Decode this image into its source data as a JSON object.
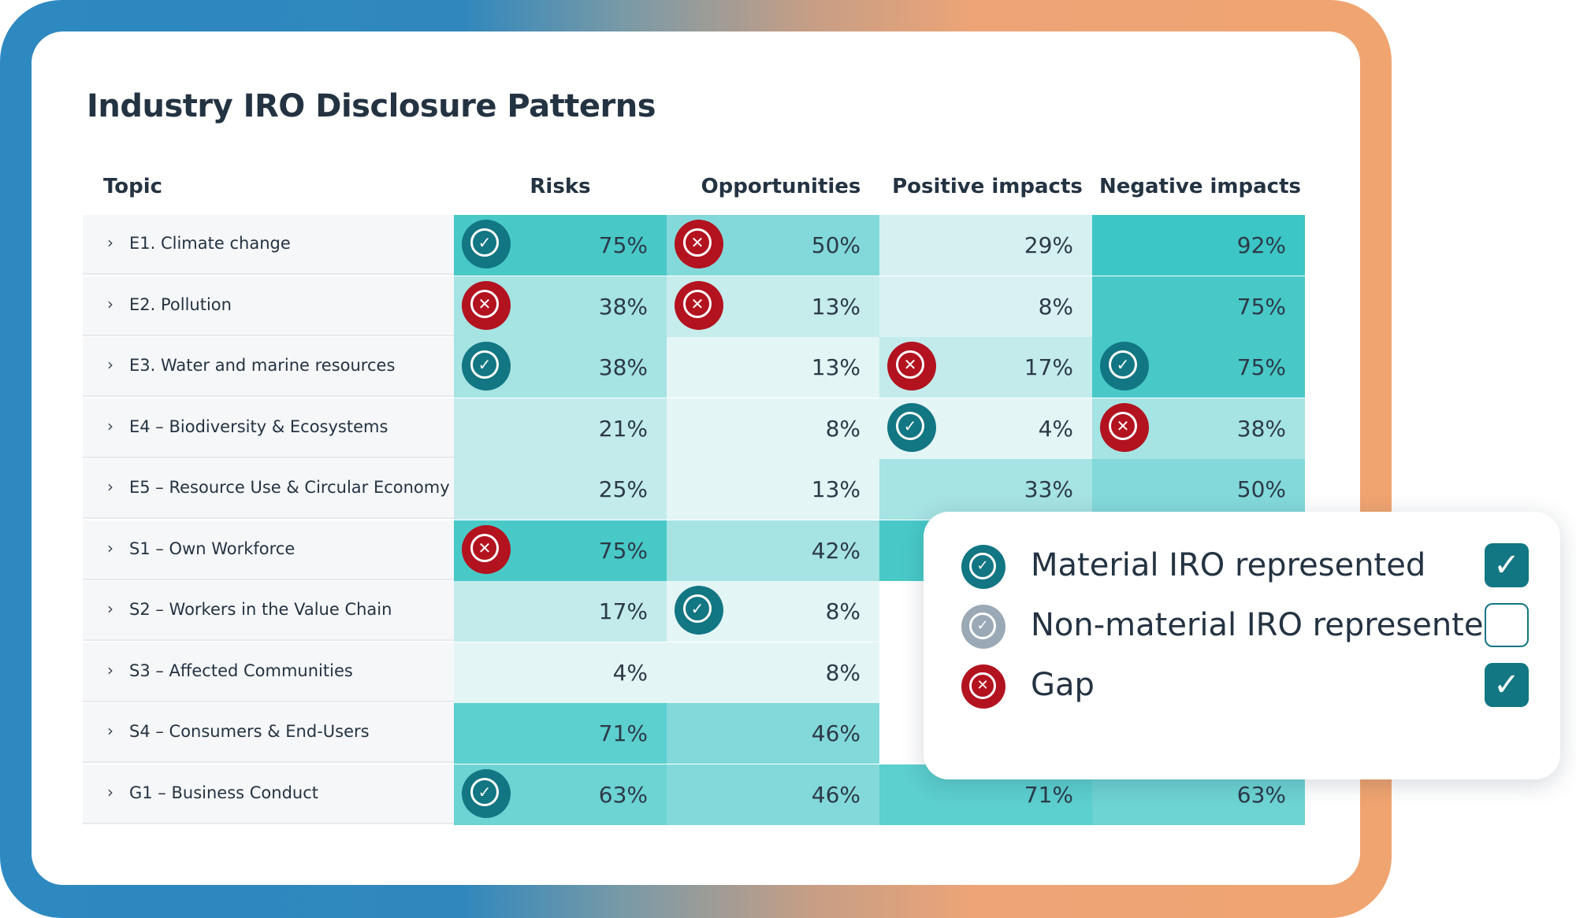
{
  "title": "Industry IRO Disclosure Patterns",
  "columns": [
    "Topic",
    "Risks",
    "Opportunities",
    "Positive impacts",
    "Negative impacts"
  ],
  "colors": {
    "material": "#127683",
    "non_material": "#9aa9b5",
    "gap": "#b3121f"
  },
  "rows": [
    {
      "topic": "E1. Climate change",
      "cells": [
        {
          "pct": "75%",
          "bg": "#48c9c8",
          "icon": "check"
        },
        {
          "pct": "50%",
          "bg": "#83d9d9",
          "icon": "x"
        },
        {
          "pct": "29%",
          "bg": "#d5f0f1",
          "icon": ""
        },
        {
          "pct": "92%",
          "bg": "#3cc6c5",
          "icon": ""
        }
      ]
    },
    {
      "topic": "E2. Pollution",
      "cells": [
        {
          "pct": "38%",
          "bg": "#a6e3e3",
          "icon": "x"
        },
        {
          "pct": "13%",
          "bg": "#c6ecec",
          "icon": "x"
        },
        {
          "pct": "8%",
          "bg": "#d9f1f2",
          "icon": ""
        },
        {
          "pct": "75%",
          "bg": "#48c9c8",
          "icon": ""
        }
      ]
    },
    {
      "topic": "E3.  Water and marine resources",
      "cells": [
        {
          "pct": "38%",
          "bg": "#a6e3e3",
          "icon": "check"
        },
        {
          "pct": "13%",
          "bg": "#e4f5f6",
          "icon": ""
        },
        {
          "pct": "17%",
          "bg": "#c3ebec",
          "icon": "x"
        },
        {
          "pct": "75%",
          "bg": "#48c9c8",
          "icon": "check"
        }
      ]
    },
    {
      "topic": "E4 – Biodiversity & Ecosystems",
      "cells": [
        {
          "pct": "21%",
          "bg": "#c3ebec",
          "icon": ""
        },
        {
          "pct": "8%",
          "bg": "#e4f5f6",
          "icon": ""
        },
        {
          "pct": "4%",
          "bg": "#e4f5f6",
          "icon": "check"
        },
        {
          "pct": "38%",
          "bg": "#a6e3e3",
          "icon": "x"
        }
      ]
    },
    {
      "topic": "E5 – Resource Use & Circular Economy",
      "cells": [
        {
          "pct": "25%",
          "bg": "#c3ebec",
          "icon": ""
        },
        {
          "pct": "13%",
          "bg": "#e4f5f6",
          "icon": ""
        },
        {
          "pct": "33%",
          "bg": "#a6e3e3",
          "icon": ""
        },
        {
          "pct": "50%",
          "bg": "#83d9d9",
          "icon": ""
        }
      ]
    },
    {
      "topic": "S1 – Own Workforce",
      "cells": [
        {
          "pct": "75%",
          "bg": "#48c9c8",
          "icon": "x"
        },
        {
          "pct": "42%",
          "bg": "#a6e3e3",
          "icon": ""
        },
        {
          "pct": "",
          "bg": "#48c9c8",
          "icon": ""
        },
        {
          "pct": "",
          "bg": "#ffffff",
          "icon": ""
        }
      ]
    },
    {
      "topic": "S2 – Workers in the Value Chain",
      "cells": [
        {
          "pct": "17%",
          "bg": "#c3ebec",
          "icon": ""
        },
        {
          "pct": "8%",
          "bg": "#e4f5f6",
          "icon": "check"
        },
        {
          "pct": "",
          "bg": "#ffffff",
          "icon": ""
        },
        {
          "pct": "",
          "bg": "#ffffff",
          "icon": ""
        }
      ]
    },
    {
      "topic": "S3 – Affected Communities",
      "cells": [
        {
          "pct": "4%",
          "bg": "#e4f5f6",
          "icon": ""
        },
        {
          "pct": "8%",
          "bg": "#e4f5f6",
          "icon": ""
        },
        {
          "pct": "",
          "bg": "#ffffff",
          "icon": ""
        },
        {
          "pct": "",
          "bg": "#ffffff",
          "icon": ""
        }
      ]
    },
    {
      "topic": "S4 – Consumers & End-Users",
      "cells": [
        {
          "pct": "71%",
          "bg": "#5ccfcf",
          "icon": ""
        },
        {
          "pct": "46%",
          "bg": "#83d9d9",
          "icon": ""
        },
        {
          "pct": "",
          "bg": "#ffffff",
          "icon": ""
        },
        {
          "pct": "",
          "bg": "#ffffff",
          "icon": ""
        }
      ]
    },
    {
      "topic": "G1 – Business Conduct",
      "cells": [
        {
          "pct": "63%",
          "bg": "#6dd3d3",
          "icon": "check"
        },
        {
          "pct": "46%",
          "bg": "#83d9d9",
          "icon": ""
        },
        {
          "pct": "71%",
          "bg": "#5ccfcf",
          "icon": ""
        },
        {
          "pct": "63%",
          "bg": "#6dd3d3",
          "icon": ""
        }
      ]
    }
  ],
  "legend": [
    {
      "label": "Material IRO represented",
      "icon": "check",
      "kind": "ok",
      "checked": true
    },
    {
      "label": "Non-material IRO represented",
      "icon": "check",
      "kind": "nm",
      "checked": false
    },
    {
      "label": "Gap",
      "icon": "x",
      "kind": "gap",
      "checked": true
    }
  ]
}
